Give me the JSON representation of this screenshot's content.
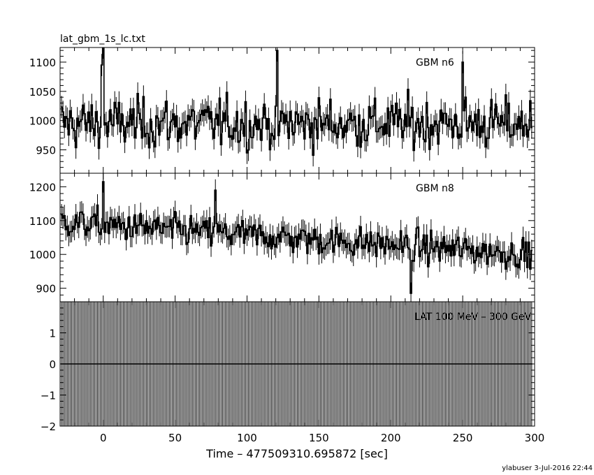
{
  "plot_title": "lat_gbm_1s_lc.txt",
  "footer": "ylabuser  3-Jul-2016 22:44",
  "chart_data": [
    {
      "type": "line",
      "series": [
        {
          "name": "GBM n6"
        }
      ],
      "label": "GBM n6",
      "xlim": [
        -30,
        300
      ],
      "ylim": [
        910,
        1125
      ],
      "yticks": [
        950,
        1000,
        1050,
        1100
      ],
      "ytick_labels": [
        "950",
        "1000",
        "1050",
        "1100"
      ],
      "x_range": [
        -29,
        298
      ],
      "level": 995,
      "noise": 30,
      "spikes": [
        {
          "x": 0,
          "y": 1125
        },
        {
          "x": -1,
          "y": 1095
        },
        {
          "x": 121,
          "y": 1120
        },
        {
          "x": 250,
          "y": 1100
        }
      ],
      "error_bar": 19
    },
    {
      "type": "line",
      "series": [
        {
          "name": "GBM n8"
        }
      ],
      "label": "GBM n8",
      "xlim": [
        -30,
        300
      ],
      "ylim": [
        860,
        1240
      ],
      "yticks": [
        900,
        1000,
        1100,
        1200
      ],
      "ytick_labels": [
        "900",
        "1000",
        "1100",
        "1200"
      ],
      "x_range": [
        -29,
        298
      ],
      "trend_start": 1095,
      "trend_end": 1000,
      "noise": 32,
      "spikes": [
        {
          "x": 0,
          "y": 1215
        },
        {
          "x": 78,
          "y": 1190
        },
        {
          "x": 214,
          "y": 885
        }
      ],
      "error_bar": 32
    },
    {
      "type": "line",
      "series": [
        {
          "name": "LAT 100 MeV - 300 GeV"
        }
      ],
      "label": "LAT 100 MeV – 300 GeV",
      "xlim": [
        -30,
        300
      ],
      "ylim": [
        -2,
        2
      ],
      "yticks": [
        -2,
        -1,
        0,
        1
      ],
      "ytick_labels": [
        "−2",
        "−1",
        "0",
        "1"
      ],
      "x_range": [
        -29,
        298
      ],
      "values_constant": 0,
      "error_bar": 2
    }
  ],
  "x_axis": {
    "label": "Time – 477509310.695872 [sec]",
    "ticks": [
      0,
      50,
      100,
      150,
      200,
      250,
      300
    ],
    "tick_labels": [
      "0",
      "50",
      "100",
      "150",
      "200",
      "250",
      "300"
    ]
  }
}
